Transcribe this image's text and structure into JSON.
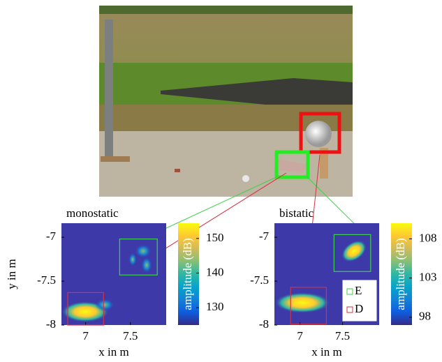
{
  "chart_data": [
    {
      "type": "heatmap",
      "title": "monostatic",
      "xlabel": "x in m",
      "ylabel": "y in m",
      "xlim": [
        6.73,
        7.9
      ],
      "ylim": [
        -8,
        -6.84
      ],
      "xticks": [
        7,
        7.5
      ],
      "yticks": [
        -8,
        -7.5,
        -7
      ],
      "clim": [
        125,
        154.4
      ],
      "cticks": [
        130,
        140,
        150
      ],
      "clabel": "amplitude (dB)",
      "boxes": [
        {
          "color": "#3fd04a",
          "xlim": [
            7.38,
            7.8
          ],
          "ylim": [
            -7.43,
            -7.02
          ]
        },
        {
          "color": "#d83040",
          "xlim": [
            6.8,
            7.2
          ],
          "ylim": [
            -8,
            -7.63
          ]
        }
      ]
    },
    {
      "type": "heatmap",
      "title": "bistatic",
      "xlabel": "x in m",
      "xlim": [
        6.7,
        7.93
      ],
      "ylim": [
        -8,
        -6.84
      ],
      "xticks": [
        7,
        7.5
      ],
      "yticks": [
        -8,
        -7.5,
        -7
      ],
      "clim": [
        97,
        110
      ],
      "cticks": [
        98,
        103,
        108
      ],
      "clabel": "amplitude (dB)",
      "boxes": [
        {
          "name": "E",
          "color": "#3fd04a",
          "xlim": [
            7.4,
            7.83
          ],
          "ylim": [
            -7.39,
            -6.97
          ]
        },
        {
          "name": "D",
          "color": "#d83040",
          "xlim": [
            6.89,
            7.31
          ],
          "ylim": [
            -7.99,
            -7.57
          ]
        }
      ]
    }
  ]
}
